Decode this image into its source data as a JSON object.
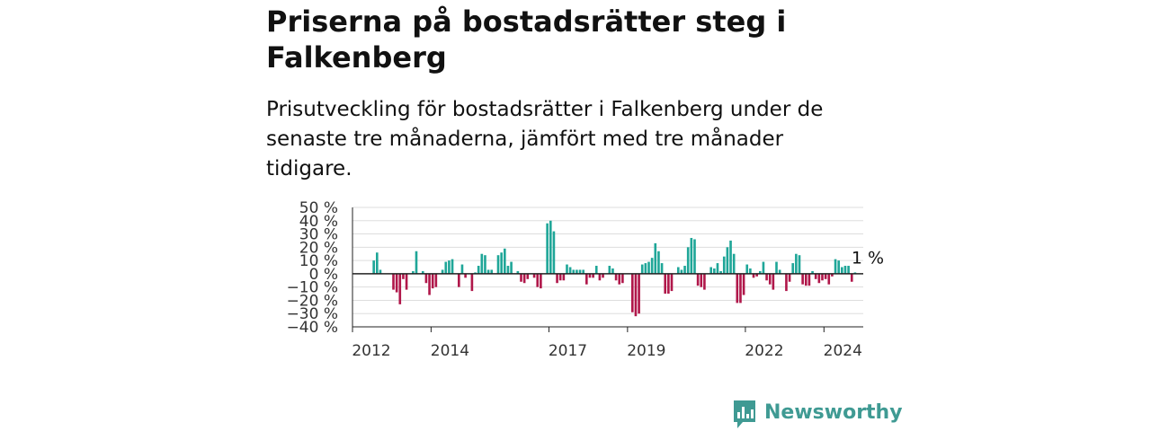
{
  "header": {
    "title": "Priserna på bostadsrätter steg i Falkenberg",
    "subtitle": "Prisutveckling för bostadsrätter i Falkenberg under de senaste tre månaderna, jämfört med tre månader tidigare."
  },
  "brand": {
    "name": "Newsworthy",
    "color": "#3f9a93"
  },
  "chart_data": {
    "type": "bar",
    "title": "",
    "xlabel": "",
    "ylabel": "",
    "ylim": [
      -40,
      50
    ],
    "y_ticks": [
      50,
      40,
      30,
      20,
      10,
      0,
      -10,
      -20,
      -30,
      -40
    ],
    "y_tick_labels": [
      "50 %",
      "40 %",
      "30 %",
      "20 %",
      "10 %",
      "0 %",
      "−10 %",
      "−20 %",
      "−30 %",
      "−40 %"
    ],
    "x_start": "2012-01",
    "x_end": "2025-01",
    "x_ticks": [
      "2012-01",
      "2014-01",
      "2017-01",
      "2019-01",
      "2022-01",
      "2024-01"
    ],
    "x_tick_labels": [
      "2012",
      "2014",
      "2017",
      "2019",
      "2022",
      "2024"
    ],
    "grid": true,
    "positive_color": "#1fa698",
    "negative_color": "#b0174a",
    "end_label": "1 %",
    "series": [
      {
        "values": [
          {
            "date": "2012-07",
            "value": 10
          },
          {
            "date": "2012-08",
            "value": 16
          },
          {
            "date": "2012-09",
            "value": 3
          },
          {
            "date": "2012-11",
            "value": 0
          },
          {
            "date": "2012-12",
            "value": 0
          },
          {
            "date": "2013-01",
            "value": -12
          },
          {
            "date": "2013-02",
            "value": -14
          },
          {
            "date": "2013-03",
            "value": -23
          },
          {
            "date": "2013-04",
            "value": -4
          },
          {
            "date": "2013-05",
            "value": -12
          },
          {
            "date": "2013-07",
            "value": 2
          },
          {
            "date": "2013-08",
            "value": 17
          },
          {
            "date": "2013-10",
            "value": 2
          },
          {
            "date": "2013-11",
            "value": -7
          },
          {
            "date": "2013-12",
            "value": -16
          },
          {
            "date": "2014-01",
            "value": -11
          },
          {
            "date": "2014-02",
            "value": -10
          },
          {
            "date": "2014-04",
            "value": 3
          },
          {
            "date": "2014-05",
            "value": 9
          },
          {
            "date": "2014-06",
            "value": 10
          },
          {
            "date": "2014-07",
            "value": 11
          },
          {
            "date": "2014-09",
            "value": -10
          },
          {
            "date": "2014-10",
            "value": 7
          },
          {
            "date": "2014-11",
            "value": -3
          },
          {
            "date": "2014-12",
            "value": 0
          },
          {
            "date": "2015-01",
            "value": -13
          },
          {
            "date": "2015-02",
            "value": 1
          },
          {
            "date": "2015-03",
            "value": 6
          },
          {
            "date": "2015-04",
            "value": 15
          },
          {
            "date": "2015-05",
            "value": 14
          },
          {
            "date": "2015-06",
            "value": 3
          },
          {
            "date": "2015-07",
            "value": 3
          },
          {
            "date": "2015-09",
            "value": 14
          },
          {
            "date": "2015-10",
            "value": 16
          },
          {
            "date": "2015-11",
            "value": 19
          },
          {
            "date": "2015-12",
            "value": 6
          },
          {
            "date": "2016-01",
            "value": 9
          },
          {
            "date": "2016-03",
            "value": 2
          },
          {
            "date": "2016-04",
            "value": -6
          },
          {
            "date": "2016-05",
            "value": -7
          },
          {
            "date": "2016-06",
            "value": -4
          },
          {
            "date": "2016-07",
            "value": 0
          },
          {
            "date": "2016-08",
            "value": -3
          },
          {
            "date": "2016-09",
            "value": -10
          },
          {
            "date": "2016-10",
            "value": -11
          },
          {
            "date": "2016-12",
            "value": 38
          },
          {
            "date": "2017-01",
            "value": 40
          },
          {
            "date": "2017-02",
            "value": 32
          },
          {
            "date": "2017-03",
            "value": -7
          },
          {
            "date": "2017-04",
            "value": -5
          },
          {
            "date": "2017-05",
            "value": -5
          },
          {
            "date": "2017-06",
            "value": 7
          },
          {
            "date": "2017-07",
            "value": 5
          },
          {
            "date": "2017-08",
            "value": 3
          },
          {
            "date": "2017-09",
            "value": 3
          },
          {
            "date": "2017-10",
            "value": 3
          },
          {
            "date": "2017-11",
            "value": 3
          },
          {
            "date": "2017-12",
            "value": -8
          },
          {
            "date": "2018-01",
            "value": -3
          },
          {
            "date": "2018-02",
            "value": -3
          },
          {
            "date": "2018-03",
            "value": 6
          },
          {
            "date": "2018-04",
            "value": -5
          },
          {
            "date": "2018-05",
            "value": -3
          },
          {
            "date": "2018-07",
            "value": 6
          },
          {
            "date": "2018-08",
            "value": 4
          },
          {
            "date": "2018-09",
            "value": -5
          },
          {
            "date": "2018-10",
            "value": -8
          },
          {
            "date": "2018-11",
            "value": -7
          },
          {
            "date": "2019-02",
            "value": -29
          },
          {
            "date": "2019-03",
            "value": -32
          },
          {
            "date": "2019-04",
            "value": -30
          },
          {
            "date": "2019-05",
            "value": 7
          },
          {
            "date": "2019-06",
            "value": 8
          },
          {
            "date": "2019-07",
            "value": 9
          },
          {
            "date": "2019-08",
            "value": 12
          },
          {
            "date": "2019-09",
            "value": 23
          },
          {
            "date": "2019-10",
            "value": 17
          },
          {
            "date": "2019-11",
            "value": 8
          },
          {
            "date": "2019-12",
            "value": -15
          },
          {
            "date": "2020-01",
            "value": -15
          },
          {
            "date": "2020-02",
            "value": -13
          },
          {
            "date": "2020-04",
            "value": 5
          },
          {
            "date": "2020-05",
            "value": 3
          },
          {
            "date": "2020-06",
            "value": 6
          },
          {
            "date": "2020-07",
            "value": 20
          },
          {
            "date": "2020-08",
            "value": 27
          },
          {
            "date": "2020-09",
            "value": 26
          },
          {
            "date": "2020-10",
            "value": -9
          },
          {
            "date": "2020-11",
            "value": -10
          },
          {
            "date": "2020-12",
            "value": -12
          },
          {
            "date": "2021-02",
            "value": 5
          },
          {
            "date": "2021-03",
            "value": 4
          },
          {
            "date": "2021-04",
            "value": 8
          },
          {
            "date": "2021-05",
            "value": 2
          },
          {
            "date": "2021-06",
            "value": 13
          },
          {
            "date": "2021-07",
            "value": 20
          },
          {
            "date": "2021-08",
            "value": 25
          },
          {
            "date": "2021-09",
            "value": 15
          },
          {
            "date": "2021-10",
            "value": -22
          },
          {
            "date": "2021-11",
            "value": -22
          },
          {
            "date": "2021-12",
            "value": -16
          },
          {
            "date": "2022-01",
            "value": 7
          },
          {
            "date": "2022-02",
            "value": 4
          },
          {
            "date": "2022-03",
            "value": -3
          },
          {
            "date": "2022-04",
            "value": -2
          },
          {
            "date": "2022-05",
            "value": 2
          },
          {
            "date": "2022-06",
            "value": 9
          },
          {
            "date": "2022-07",
            "value": -5
          },
          {
            "date": "2022-08",
            "value": -8
          },
          {
            "date": "2022-09",
            "value": -12
          },
          {
            "date": "2022-10",
            "value": 9
          },
          {
            "date": "2022-11",
            "value": 3
          },
          {
            "date": "2023-01",
            "value": -13
          },
          {
            "date": "2023-02",
            "value": -6
          },
          {
            "date": "2023-03",
            "value": 8
          },
          {
            "date": "2023-04",
            "value": 15
          },
          {
            "date": "2023-05",
            "value": 14
          },
          {
            "date": "2023-06",
            "value": -8
          },
          {
            "date": "2023-07",
            "value": -9
          },
          {
            "date": "2023-08",
            "value": -9
          },
          {
            "date": "2023-09",
            "value": 2
          },
          {
            "date": "2023-10",
            "value": -4
          },
          {
            "date": "2023-11",
            "value": -7
          },
          {
            "date": "2023-12",
            "value": -5
          },
          {
            "date": "2024-01",
            "value": -4
          },
          {
            "date": "2024-02",
            "value": -8
          },
          {
            "date": "2024-03",
            "value": -2
          },
          {
            "date": "2024-04",
            "value": 11
          },
          {
            "date": "2024-05",
            "value": 10
          },
          {
            "date": "2024-06",
            "value": 5
          },
          {
            "date": "2024-07",
            "value": 6
          },
          {
            "date": "2024-08",
            "value": 6
          },
          {
            "date": "2024-09",
            "value": -6
          },
          {
            "date": "2024-10",
            "value": 1
          }
        ]
      }
    ]
  }
}
